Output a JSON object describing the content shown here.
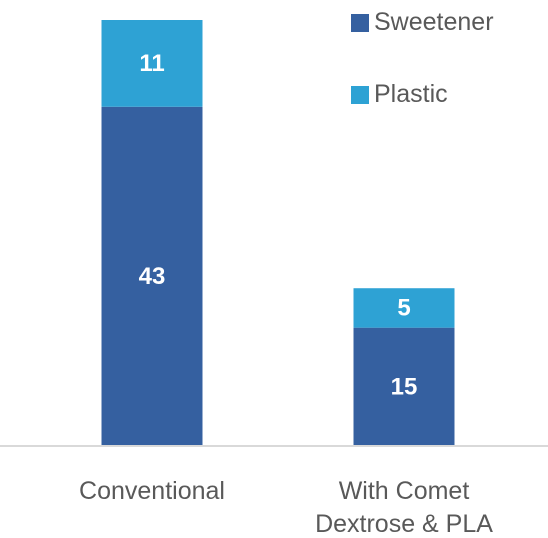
{
  "chart_data": {
    "type": "bar",
    "stacked": true,
    "categories": [
      [
        "Conventional"
      ],
      [
        "With Comet",
        "Dextrose & PLA"
      ]
    ],
    "series": [
      {
        "name": "Sweetener",
        "values": [
          43,
          15
        ],
        "color": "#3560a0"
      },
      {
        "name": "Plastic",
        "values": [
          11,
          5
        ],
        "color": "#2ea2d4"
      }
    ],
    "ylim": [
      0,
      54
    ],
    "grid": false,
    "legend_position": "top-right",
    "axis_color": "#d9d9d9"
  }
}
